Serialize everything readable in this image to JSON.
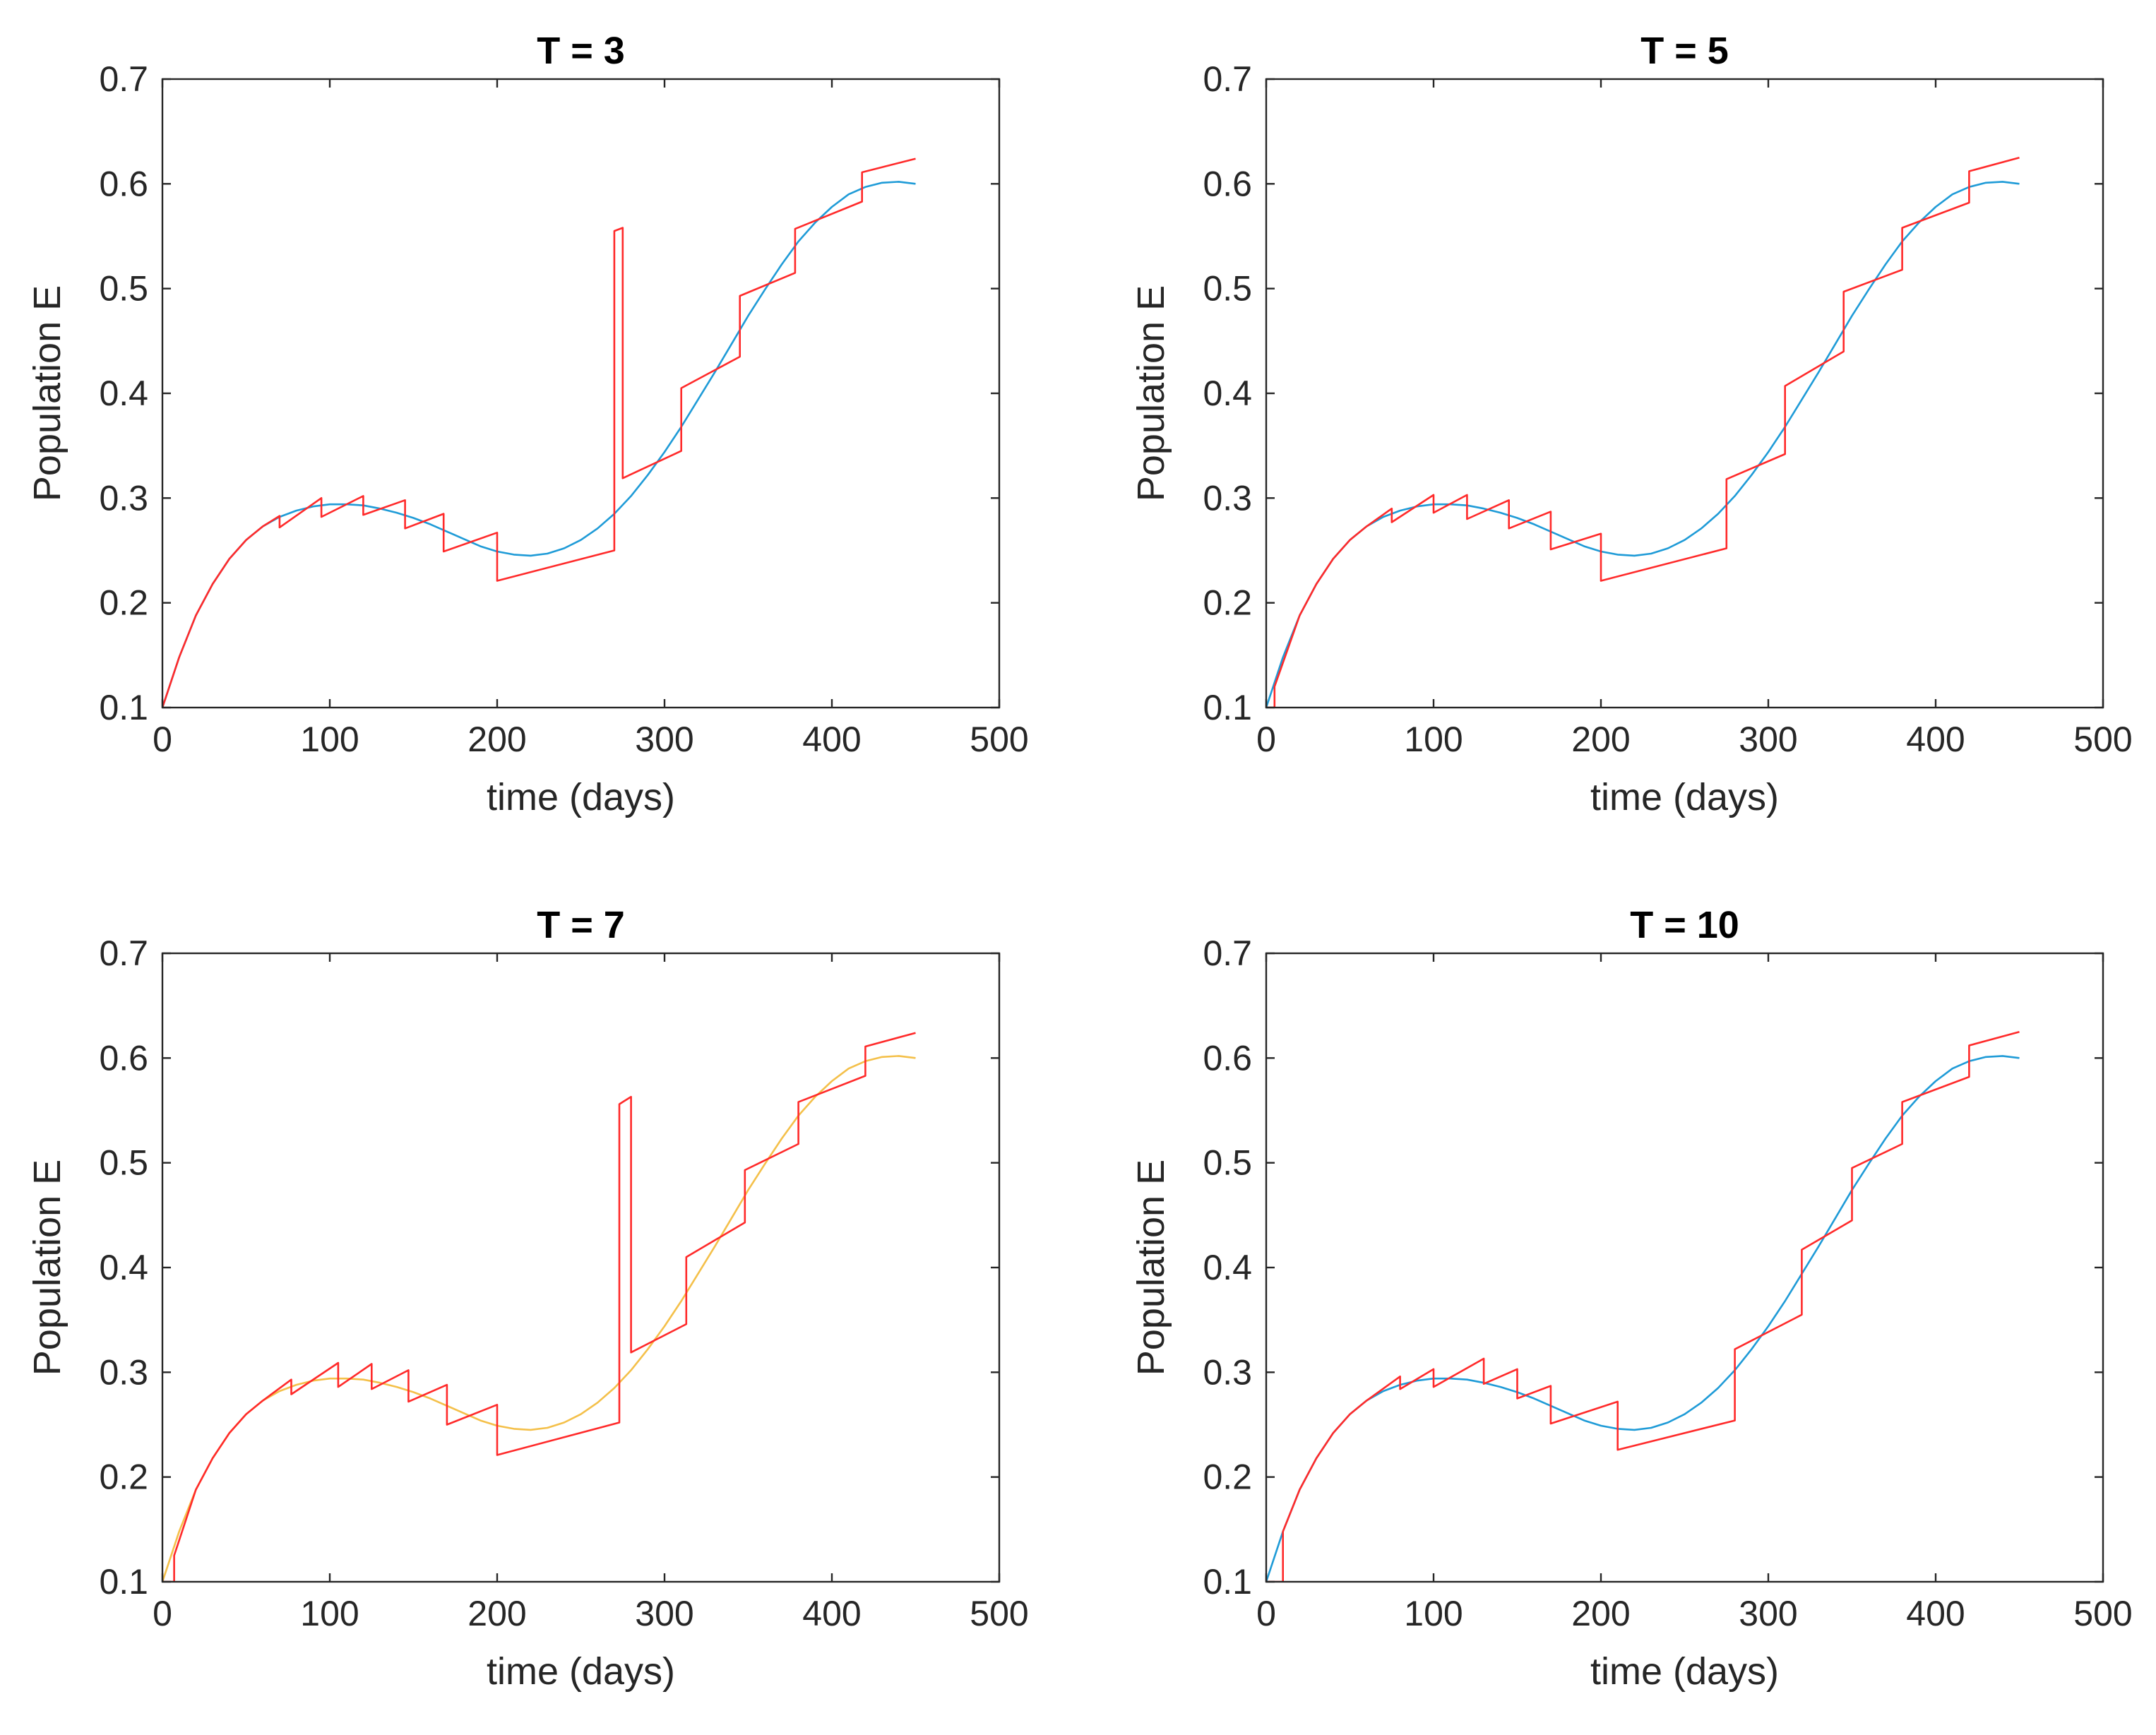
{
  "colors": {
    "smooth_blue": "#1f9bd7",
    "smooth_yellow": "#f4c04a",
    "sampled_red": "#ff2a2a"
  },
  "chart_data": [
    {
      "type": "line",
      "title": "T = 3",
      "xlabel": "time (days)",
      "ylabel": "Population E",
      "xlim": [
        0,
        500
      ],
      "ylim": [
        0.1,
        0.7
      ],
      "xticks": [
        "0",
        "100",
        "200",
        "300",
        "400",
        "500"
      ],
      "yticks": [
        "0.1",
        "0.2",
        "0.3",
        "0.4",
        "0.5",
        "0.6",
        "0.7"
      ],
      "series": [
        {
          "name": "smooth",
          "color": "#1f9bd7",
          "x": [
            0,
            10,
            20,
            30,
            40,
            50,
            60,
            70,
            80,
            90,
            100,
            110,
            120,
            130,
            140,
            150,
            160,
            170,
            180,
            190,
            200,
            210,
            220,
            230,
            240,
            250,
            260,
            270,
            280,
            290,
            300,
            310,
            320,
            330,
            340,
            350,
            360,
            370,
            380,
            390,
            400,
            410,
            420,
            430,
            440,
            450
          ],
          "y": [
            0.1,
            0.148,
            0.188,
            0.218,
            0.242,
            0.26,
            0.273,
            0.282,
            0.288,
            0.292,
            0.294,
            0.294,
            0.293,
            0.29,
            0.286,
            0.281,
            0.275,
            0.268,
            0.261,
            0.254,
            0.249,
            0.246,
            0.245,
            0.247,
            0.252,
            0.26,
            0.271,
            0.285,
            0.302,
            0.322,
            0.344,
            0.368,
            0.394,
            0.42,
            0.447,
            0.474,
            0.499,
            0.523,
            0.545,
            0.563,
            0.578,
            0.59,
            0.597,
            0.601,
            0.602,
            0.6
          ]
        },
        {
          "name": "sampled",
          "color": "#ff2a2a",
          "x": [
            0,
            10,
            20,
            30,
            40,
            50,
            60,
            70,
            70,
            95,
            95,
            120,
            120,
            145,
            145,
            168,
            168,
            200,
            200,
            270,
            270,
            275,
            275,
            310,
            310,
            345,
            345,
            378,
            378,
            418,
            418,
            450
          ],
          "y": [
            0.1,
            0.148,
            0.188,
            0.218,
            0.242,
            0.26,
            0.273,
            0.283,
            0.272,
            0.3,
            0.282,
            0.302,
            0.284,
            0.298,
            0.271,
            0.285,
            0.249,
            0.267,
            0.221,
            0.25,
            0.555,
            0.558,
            0.319,
            0.345,
            0.405,
            0.435,
            0.493,
            0.515,
            0.557,
            0.583,
            0.611,
            0.624
          ]
        }
      ]
    },
    {
      "type": "line",
      "title": "T = 5",
      "xlabel": "time (days)",
      "ylabel": "Population E",
      "xlim": [
        0,
        500
      ],
      "ylim": [
        0.1,
        0.7
      ],
      "xticks": [
        "0",
        "100",
        "200",
        "300",
        "400",
        "500"
      ],
      "yticks": [
        "0.1",
        "0.2",
        "0.3",
        "0.4",
        "0.5",
        "0.6",
        "0.7"
      ],
      "series": [
        {
          "name": "smooth",
          "color": "#1f9bd7",
          "x": [
            0,
            10,
            20,
            30,
            40,
            50,
            60,
            70,
            80,
            90,
            100,
            110,
            120,
            130,
            140,
            150,
            160,
            170,
            180,
            190,
            200,
            210,
            220,
            230,
            240,
            250,
            260,
            270,
            280,
            290,
            300,
            310,
            320,
            330,
            340,
            350,
            360,
            370,
            380,
            390,
            400,
            410,
            420,
            430,
            440,
            450
          ],
          "y": [
            0.1,
            0.148,
            0.188,
            0.218,
            0.242,
            0.26,
            0.273,
            0.282,
            0.288,
            0.292,
            0.294,
            0.294,
            0.293,
            0.29,
            0.286,
            0.281,
            0.275,
            0.268,
            0.261,
            0.254,
            0.249,
            0.246,
            0.245,
            0.247,
            0.252,
            0.26,
            0.271,
            0.285,
            0.302,
            0.322,
            0.344,
            0.368,
            0.394,
            0.42,
            0.447,
            0.474,
            0.499,
            0.523,
            0.545,
            0.563,
            0.578,
            0.59,
            0.597,
            0.601,
            0.602,
            0.6
          ]
        },
        {
          "name": "sampled",
          "color": "#ff2a2a",
          "x": [
            0,
            5,
            5,
            20,
            30,
            40,
            50,
            60,
            75,
            75,
            100,
            100,
            120,
            120,
            145,
            145,
            170,
            170,
            200,
            200,
            275,
            275,
            310,
            310,
            345,
            345,
            380,
            380,
            420,
            420,
            450
          ],
          "y": [
            0.1,
            0.1,
            0.12,
            0.188,
            0.218,
            0.242,
            0.26,
            0.273,
            0.29,
            0.277,
            0.303,
            0.286,
            0.303,
            0.28,
            0.298,
            0.271,
            0.287,
            0.251,
            0.266,
            0.221,
            0.252,
            0.318,
            0.342,
            0.407,
            0.44,
            0.497,
            0.518,
            0.558,
            0.582,
            0.612,
            0.625
          ]
        }
      ]
    },
    {
      "type": "line",
      "title": "T = 7",
      "xlabel": "time (days)",
      "ylabel": "Population E",
      "xlim": [
        0,
        500
      ],
      "ylim": [
        0.1,
        0.7
      ],
      "xticks": [
        "0",
        "100",
        "200",
        "300",
        "400",
        "500"
      ],
      "yticks": [
        "0.1",
        "0.2",
        "0.3",
        "0.4",
        "0.5",
        "0.6",
        "0.7"
      ],
      "series": [
        {
          "name": "smooth",
          "color": "#f4c04a",
          "x": [
            0,
            10,
            20,
            30,
            40,
            50,
            60,
            70,
            80,
            90,
            100,
            110,
            120,
            130,
            140,
            150,
            160,
            170,
            180,
            190,
            200,
            210,
            220,
            230,
            240,
            250,
            260,
            270,
            280,
            290,
            300,
            310,
            320,
            330,
            340,
            350,
            360,
            370,
            380,
            390,
            400,
            410,
            420,
            430,
            440,
            450
          ],
          "y": [
            0.1,
            0.148,
            0.188,
            0.218,
            0.242,
            0.26,
            0.273,
            0.282,
            0.288,
            0.292,
            0.294,
            0.294,
            0.293,
            0.29,
            0.286,
            0.281,
            0.275,
            0.268,
            0.261,
            0.254,
            0.249,
            0.246,
            0.245,
            0.247,
            0.252,
            0.26,
            0.271,
            0.285,
            0.302,
            0.322,
            0.344,
            0.368,
            0.394,
            0.42,
            0.447,
            0.474,
            0.499,
            0.523,
            0.545,
            0.563,
            0.578,
            0.59,
            0.597,
            0.601,
            0.602,
            0.6
          ]
        },
        {
          "name": "sampled",
          "color": "#ff2a2a",
          "x": [
            0,
            7,
            7,
            20,
            30,
            40,
            50,
            60,
            77,
            77,
            105,
            105,
            125,
            125,
            147,
            147,
            170,
            170,
            200,
            200,
            273,
            273,
            280,
            280,
            313,
            313,
            348,
            348,
            380,
            380,
            420,
            420,
            450
          ],
          "y": [
            0.1,
            0.1,
            0.125,
            0.188,
            0.218,
            0.242,
            0.26,
            0.273,
            0.293,
            0.279,
            0.309,
            0.286,
            0.308,
            0.284,
            0.302,
            0.272,
            0.288,
            0.25,
            0.269,
            0.221,
            0.252,
            0.556,
            0.563,
            0.319,
            0.346,
            0.41,
            0.443,
            0.493,
            0.518,
            0.558,
            0.583,
            0.611,
            0.624
          ]
        }
      ]
    },
    {
      "type": "line",
      "title": "T = 10",
      "xlabel": "time (days)",
      "ylabel": "Population E",
      "xlim": [
        0,
        500
      ],
      "ylim": [
        0.1,
        0.7
      ],
      "xticks": [
        "0",
        "100",
        "200",
        "300",
        "400",
        "500"
      ],
      "yticks": [
        "0.1",
        "0.2",
        "0.3",
        "0.4",
        "0.5",
        "0.6",
        "0.7"
      ],
      "series": [
        {
          "name": "smooth",
          "color": "#1f9bd7",
          "x": [
            0,
            10,
            20,
            30,
            40,
            50,
            60,
            70,
            80,
            90,
            100,
            110,
            120,
            130,
            140,
            150,
            160,
            170,
            180,
            190,
            200,
            210,
            220,
            230,
            240,
            250,
            260,
            270,
            280,
            290,
            300,
            310,
            320,
            330,
            340,
            350,
            360,
            370,
            380,
            390,
            400,
            410,
            420,
            430,
            440,
            450
          ],
          "y": [
            0.1,
            0.148,
            0.188,
            0.218,
            0.242,
            0.26,
            0.273,
            0.282,
            0.288,
            0.292,
            0.294,
            0.294,
            0.293,
            0.29,
            0.286,
            0.281,
            0.275,
            0.268,
            0.261,
            0.254,
            0.249,
            0.246,
            0.245,
            0.247,
            0.252,
            0.26,
            0.271,
            0.285,
            0.302,
            0.322,
            0.344,
            0.368,
            0.394,
            0.42,
            0.447,
            0.474,
            0.499,
            0.523,
            0.545,
            0.563,
            0.578,
            0.59,
            0.597,
            0.601,
            0.602,
            0.6
          ]
        },
        {
          "name": "sampled",
          "color": "#ff2a2a",
          "x": [
            0,
            10,
            10,
            20,
            30,
            40,
            50,
            60,
            80,
            80,
            100,
            100,
            130,
            130,
            150,
            150,
            170,
            170,
            210,
            210,
            280,
            280,
            320,
            320,
            350,
            350,
            380,
            380,
            420,
            420,
            450
          ],
          "y": [
            0.1,
            0.1,
            0.148,
            0.188,
            0.218,
            0.242,
            0.26,
            0.273,
            0.296,
            0.284,
            0.303,
            0.286,
            0.313,
            0.289,
            0.303,
            0.275,
            0.287,
            0.251,
            0.272,
            0.226,
            0.254,
            0.322,
            0.355,
            0.417,
            0.445,
            0.495,
            0.518,
            0.558,
            0.582,
            0.612,
            0.625
          ]
        }
      ]
    }
  ]
}
